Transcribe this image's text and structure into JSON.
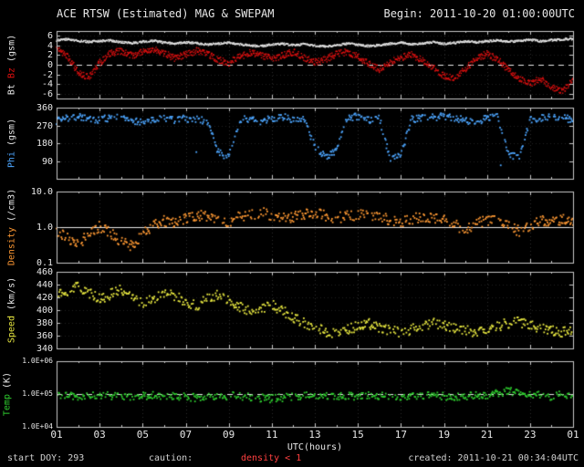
{
  "header": {
    "title": "ACE RTSW (Estimated) MAG & SWEPAM",
    "begin": "Begin: 2011-10-20 01:00:00UTC"
  },
  "footer": {
    "start_doy": "start DOY: 293",
    "caution_label": "caution:",
    "caution_value": "density < 1",
    "created": "created: 2011-10-21 00:34:04UTC"
  },
  "x_axis": {
    "label": "UTC(hours)",
    "range": [
      1,
      25
    ],
    "ticks": [
      "01",
      "03",
      "05",
      "07",
      "09",
      "11",
      "13",
      "15",
      "17",
      "19",
      "21",
      "23",
      "01"
    ]
  },
  "chart_data": [
    {
      "name": "mag-bt-bz",
      "type": "scatter",
      "scale": "linear",
      "ylim": [
        -7,
        7
      ],
      "yticks": [
        6,
        4,
        2,
        0,
        -2,
        -4,
        -6
      ],
      "ytick_labels": [
        "6",
        "4",
        "2",
        "0",
        "-2",
        "-4",
        "-6"
      ],
      "ylabel_parts": [
        {
          "text": "Bt ",
          "color": "#e8e8e8"
        },
        {
          "text": "Bz",
          "color": "#e01010"
        },
        {
          "text": " (gsm)",
          "color": "#e8e8e8"
        }
      ],
      "reflines": [
        {
          "value": 0,
          "style": "dashed",
          "color": "#e8e8e8"
        }
      ],
      "series": [
        {
          "name": "Bt",
          "color": "#e8e8e8",
          "mode": "line",
          "noise": 0.22,
          "x_start": 1,
          "x_step": 0.5,
          "y": [
            5.2,
            5.4,
            5.1,
            4.9,
            5.0,
            5.2,
            4.8,
            4.6,
            4.9,
            5.1,
            4.7,
            4.5,
            4.8,
            4.6,
            4.3,
            4.5,
            4.7,
            4.4,
            4.1,
            4.0,
            4.3,
            4.5,
            4.2,
            4.4,
            4.1,
            3.9,
            4.2,
            4.5,
            4.3,
            4.0,
            4.2,
            4.5,
            4.7,
            4.4,
            4.6,
            4.8,
            4.5,
            4.7,
            5.0,
            4.8,
            5.0,
            5.2,
            4.9,
            5.1,
            5.3,
            5.0,
            5.2,
            5.4,
            5.5
          ]
        },
        {
          "name": "Bz",
          "color": "#e01010",
          "mode": "line",
          "noise": 0.7,
          "x_start": 1,
          "x_step": 0.5,
          "y": [
            3.5,
            2.0,
            -1.5,
            -2.5,
            0.5,
            2.5,
            3.0,
            2.0,
            2.8,
            3.2,
            2.5,
            1.5,
            2.2,
            3.0,
            2.4,
            1.2,
            0.5,
            1.8,
            2.6,
            2.2,
            1.4,
            2.0,
            2.8,
            1.6,
            0.6,
            1.2,
            2.4,
            2.8,
            1.8,
            0.4,
            -0.8,
            0.6,
            1.6,
            2.2,
            1.0,
            -0.5,
            -2.2,
            -2.8,
            -0.8,
            1.4,
            2.4,
            1.2,
            -1.0,
            -2.6,
            -3.8,
            -2.8,
            -4.5,
            -5.5,
            -3.0
          ]
        }
      ]
    },
    {
      "name": "phi",
      "type": "scatter",
      "scale": "linear",
      "ylim": [
        0,
        360
      ],
      "yticks": [
        360,
        270,
        180,
        90
      ],
      "ytick_labels": [
        "360",
        "270",
        "180",
        "90"
      ],
      "ylabel_parts": [
        {
          "text": "Phi",
          "color": "#4da6ff"
        },
        {
          "text": " (gsm)",
          "color": "#e8e8e8"
        }
      ],
      "reflines": [],
      "series": [
        {
          "name": "Phi",
          "color": "#4da6ff",
          "mode": "scatter",
          "noise": 18,
          "outliers": true,
          "x_start": 1,
          "x_step": 0.5,
          "y": [
            295,
            310,
            320,
            305,
            300,
            315,
            310,
            300,
            290,
            305,
            315,
            300,
            310,
            305,
            295,
            140,
            110,
            300,
            310,
            290,
            310,
            320,
            305,
            300,
            170,
            110,
            150,
            310,
            320,
            300,
            310,
            105,
            125,
            305,
            310,
            315,
            320,
            310,
            300,
            295,
            310,
            315,
            130,
            105,
            300,
            310,
            320,
            310,
            305
          ]
        }
      ]
    },
    {
      "name": "density",
      "type": "scatter",
      "scale": "log",
      "ylim": [
        0.1,
        10
      ],
      "yticks": [
        10,
        1,
        0.1
      ],
      "ytick_labels": [
        "10.0",
        "1.0",
        "0.1"
      ],
      "ylabel_parts": [
        {
          "text": "Density",
          "color": "#ff9933"
        },
        {
          "text": " (/cm3)",
          "color": "#e8e8e8"
        }
      ],
      "reflines": [
        {
          "value": 1,
          "style": "solid",
          "color": "#e8e8e8"
        }
      ],
      "series": [
        {
          "name": "Density",
          "color": "#ff9933",
          "mode": "scatter",
          "noise": 0.15,
          "x_start": 1,
          "x_step": 0.5,
          "y": [
            0.8,
            0.5,
            0.35,
            0.6,
            1.1,
            0.7,
            0.4,
            0.3,
            0.6,
            1.2,
            1.6,
            1.3,
            1.9,
            2.3,
            2.1,
            1.7,
            1.5,
            2.0,
            2.4,
            2.7,
            2.2,
            1.8,
            2.1,
            2.4,
            2.6,
            2.2,
            1.9,
            2.1,
            2.4,
            2.2,
            2.0,
            1.7,
            1.4,
            1.8,
            2.1,
            1.9,
            1.6,
            1.2,
            0.9,
            1.3,
            1.7,
            1.5,
            1.1,
            0.8,
            1.2,
            1.6,
            1.4,
            1.7,
            1.5
          ]
        }
      ]
    },
    {
      "name": "speed",
      "type": "scatter",
      "scale": "linear",
      "ylim": [
        340,
        460
      ],
      "yticks": [
        460,
        440,
        420,
        400,
        380,
        360,
        340
      ],
      "ytick_labels": [
        "460",
        "440",
        "420",
        "400",
        "380",
        "360",
        "340"
      ],
      "ylabel_parts": [
        {
          "text": "Speed",
          "color": "#e8e840"
        },
        {
          "text": " (km/s)",
          "color": "#e8e8e8"
        }
      ],
      "reflines": [],
      "series": [
        {
          "name": "Speed",
          "color": "#e8e840",
          "mode": "scatter",
          "noise": 8,
          "x_start": 1,
          "x_step": 0.5,
          "y": [
            425,
            432,
            438,
            428,
            418,
            426,
            434,
            422,
            412,
            420,
            430,
            424,
            414,
            408,
            418,
            426,
            416,
            406,
            398,
            404,
            410,
            400,
            390,
            382,
            374,
            368,
            366,
            370,
            376,
            380,
            374,
            369,
            366,
            371,
            376,
            381,
            378,
            373,
            369,
            367,
            371,
            376,
            381,
            383,
            378,
            373,
            369,
            367,
            371
          ]
        }
      ]
    },
    {
      "name": "temp",
      "type": "scatter",
      "scale": "log",
      "ylim": [
        10000,
        1000000
      ],
      "yticks": [
        1000000,
        100000,
        10000
      ],
      "ytick_labels": [
        "1.0E+06",
        "1.0E+05",
        "1.0E+04"
      ],
      "ylabel_parts": [
        {
          "text": "Temp",
          "color": "#2ecc2e"
        },
        {
          "text": " (K)",
          "color": "#e8e8e8"
        }
      ],
      "reflines": [
        {
          "value": 100000,
          "style": "dashed",
          "color": "#e8e8e8"
        }
      ],
      "series": [
        {
          "name": "Temp",
          "color": "#2ecc2e",
          "mode": "scatter",
          "noise": 0.12,
          "x_start": 1,
          "x_step": 0.5,
          "y": [
            100000,
            92000,
            86000,
            90000,
            98000,
            94000,
            86000,
            82000,
            90000,
            98000,
            95000,
            90000,
            86000,
            82000,
            86000,
            90000,
            94000,
            90000,
            86000,
            80000,
            76000,
            81000,
            89000,
            97000,
            94000,
            90000,
            86000,
            90000,
            94000,
            99000,
            91000,
            86000,
            81000,
            85000,
            90000,
            94000,
            90000,
            86000,
            90000,
            95000,
            100000,
            110000,
            128000,
            118000,
            100000,
            95000,
            91000,
            99000,
            103000
          ]
        }
      ]
    }
  ]
}
